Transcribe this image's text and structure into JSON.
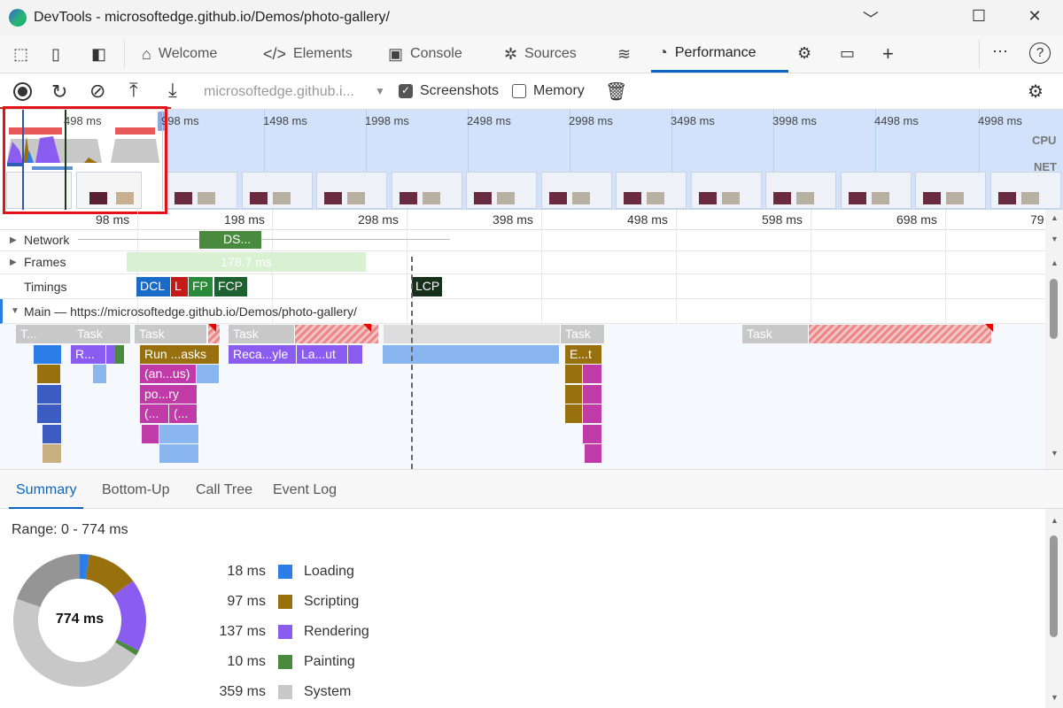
{
  "window": {
    "title": "DevTools - microsoftedge.github.io/Demos/photo-gallery/",
    "minimize": "﹀",
    "maximize": "☐",
    "close": "✕"
  },
  "tabs": [
    {
      "label": "Welcome",
      "icon": "home-icon",
      "glyph": "⌂"
    },
    {
      "label": "Elements",
      "icon": "code-icon",
      "glyph": "</>"
    },
    {
      "label": "Console",
      "icon": "console-icon",
      "glyph": "▣"
    },
    {
      "label": "Sources",
      "icon": "bug-icon",
      "glyph": "✲"
    },
    {
      "label": "",
      "icon": "wifi-icon",
      "glyph": "≋"
    },
    {
      "label": "Performance",
      "icon": "performance-icon",
      "glyph": "◔"
    }
  ],
  "toolbar": {
    "url": "microsoftedge.github.i...",
    "screenshots_label": "Screenshots",
    "screenshots_checked": true,
    "memory_label": "Memory",
    "memory_checked": false
  },
  "overview": {
    "ticks": [
      "498 ms",
      "998 ms",
      "1498 ms",
      "1998 ms",
      "2498 ms",
      "2998 ms",
      "3498 ms",
      "3998 ms",
      "4498 ms",
      "4998 ms"
    ],
    "cpu_label": "CPU",
    "net_label": "NET"
  },
  "ruler": {
    "ticks": [
      "98 ms",
      "198 ms",
      "298 ms",
      "398 ms",
      "498 ms",
      "598 ms",
      "698 ms",
      "79"
    ]
  },
  "tracks": {
    "network": "Network",
    "network_item": "DS...",
    "frames": "Frames",
    "frame_duration": "178.7 ms",
    "timings": "Timings",
    "markers": [
      "DCL",
      "L",
      "FP",
      "FCP",
      "LCP"
    ],
    "main": "Main — https://microsoftedge.github.io/Demos/photo-gallery/"
  },
  "flame": {
    "labels": [
      "T...",
      "Task",
      "Task",
      "Task",
      "Task",
      "Task",
      "R...",
      "Run ...asks",
      "Reca...yle",
      "La...ut",
      "E...t",
      "(an...us)",
      "po...ry",
      "(...",
      "(..."
    ]
  },
  "bottom_tabs": [
    "Summary",
    "Bottom-Up",
    "Call Tree",
    "Event Log"
  ],
  "summary": {
    "range": "Range: 0 - 774 ms",
    "total": "774 ms",
    "total_ms": 774,
    "categories": [
      {
        "value": "18 ms",
        "ms": 18,
        "label": "Loading",
        "color": "#2d7de6"
      },
      {
        "value": "97 ms",
        "ms": 97,
        "label": "Scripting",
        "color": "#98700e"
      },
      {
        "value": "137 ms",
        "ms": 137,
        "label": "Rendering",
        "color": "#8b5cf0"
      },
      {
        "value": "10 ms",
        "ms": 10,
        "label": "Painting",
        "color": "#4a8a3f"
      },
      {
        "value": "359 ms",
        "ms": 359,
        "label": "System",
        "color": "#c8c8c8"
      }
    ],
    "remainder_color": "#959595"
  }
}
